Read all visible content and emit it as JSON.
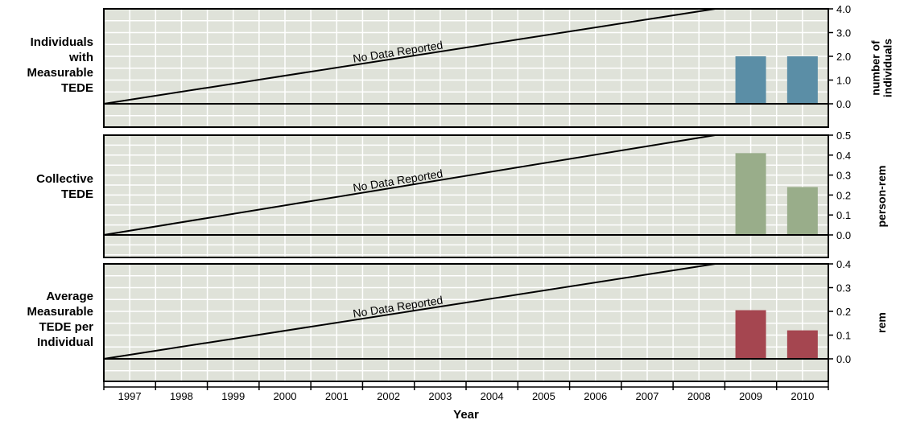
{
  "colors": {
    "plot_bg": "#dfe2d9",
    "grid": "#ffffff",
    "panel1_bar": "#5b8ea6",
    "panel2_bar": "#99ad8a",
    "panel3_bar": "#a54650",
    "line": "#000000"
  },
  "chart_data": [
    {
      "type": "bar",
      "row_label": [
        "Individuals",
        "with",
        "Measurable",
        "TEDE"
      ],
      "ylabel": [
        "number of",
        "individuals"
      ],
      "ylim": [
        -0.8,
        4.0
      ],
      "yticks": [
        "4.0",
        "3.0",
        "2.0",
        "1.0",
        "0.0"
      ],
      "ytick_values": [
        4.0,
        3.0,
        2.0,
        1.0,
        0.0
      ],
      "categories": [
        "1997",
        "1998",
        "1999",
        "2000",
        "2001",
        "2002",
        "2003",
        "2004",
        "2005",
        "2006",
        "2007",
        "2008",
        "2009",
        "2010"
      ],
      "values": [
        null,
        null,
        null,
        null,
        null,
        null,
        null,
        null,
        null,
        null,
        null,
        null,
        2,
        2
      ],
      "annotation": "No Data Reported",
      "grid": true
    },
    {
      "type": "bar",
      "row_label": [
        "Collective",
        "TEDE"
      ],
      "ylabel": [
        "person-rem"
      ],
      "ylim": [
        -0.1,
        0.5
      ],
      "yticks": [
        "0.5",
        "0.4",
        "0.3",
        "0.2",
        "0.1",
        "0.0"
      ],
      "ytick_values": [
        0.5,
        0.4,
        0.3,
        0.2,
        0.1,
        0.0
      ],
      "categories": [
        "1997",
        "1998",
        "1999",
        "2000",
        "2001",
        "2002",
        "2003",
        "2004",
        "2005",
        "2006",
        "2007",
        "2008",
        "2009",
        "2010"
      ],
      "values": [
        null,
        null,
        null,
        null,
        null,
        null,
        null,
        null,
        null,
        null,
        null,
        null,
        0.41,
        0.24
      ],
      "annotation": "No Data Reported",
      "grid": true
    },
    {
      "type": "bar",
      "row_label": [
        "Average",
        "Measurable",
        "TEDE per",
        "Individual"
      ],
      "ylabel": [
        "rem"
      ],
      "ylim": [
        -0.1,
        0.4
      ],
      "yticks": [
        "0.4",
        "0.3",
        "0.2",
        "0.1",
        "0.0"
      ],
      "ytick_values": [
        0.4,
        0.3,
        0.2,
        0.1,
        0.0
      ],
      "categories": [
        "1997",
        "1998",
        "1999",
        "2000",
        "2001",
        "2002",
        "2003",
        "2004",
        "2005",
        "2006",
        "2007",
        "2008",
        "2009",
        "2010"
      ],
      "values": [
        null,
        null,
        null,
        null,
        null,
        null,
        null,
        null,
        null,
        null,
        null,
        null,
        0.205,
        0.12
      ],
      "annotation": "No Data Reported",
      "grid": true
    }
  ],
  "xaxis": {
    "label": "Year",
    "ticks": [
      "1997",
      "1998",
      "1999",
      "2000",
      "2001",
      "2002",
      "2003",
      "2004",
      "2005",
      "2006",
      "2007",
      "2008",
      "2009",
      "2010"
    ]
  }
}
